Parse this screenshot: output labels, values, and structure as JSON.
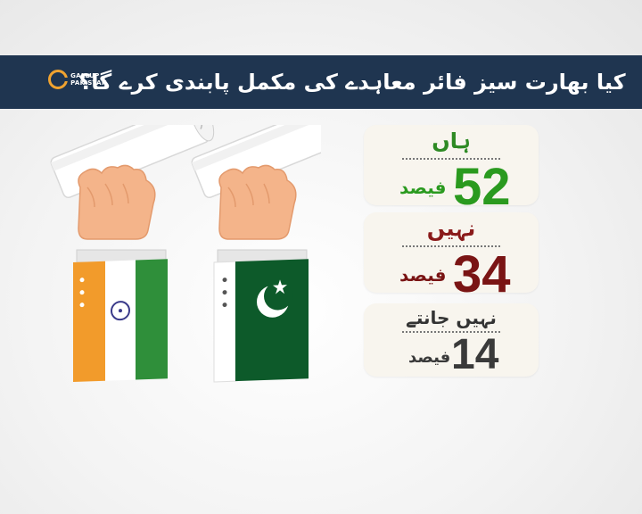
{
  "header": {
    "title": "کیا بھارت سیز فائر معاہدے کی مکمل پابندی کرے گا؟",
    "logo_text_line1": "GALLUP",
    "logo_text_line2": "PAKISTAN"
  },
  "results": {
    "yes": {
      "label": "ہاں",
      "value": "52",
      "unit": "فیصد",
      "color": "#2a9a1f"
    },
    "no": {
      "label": "نہیں",
      "value": "34",
      "unit": "فیصد",
      "color": "#7a1414"
    },
    "dont_know": {
      "label": "نہیں جانتے",
      "value": "14",
      "unit": "فیصد",
      "color": "#3a3a3a"
    }
  },
  "illustration": {
    "left_icon": "india-flag-sleeve-hand-holding-scroll-icon",
    "right_icon": "pakistan-flag-sleeve-hand-holding-scroll-icon"
  }
}
